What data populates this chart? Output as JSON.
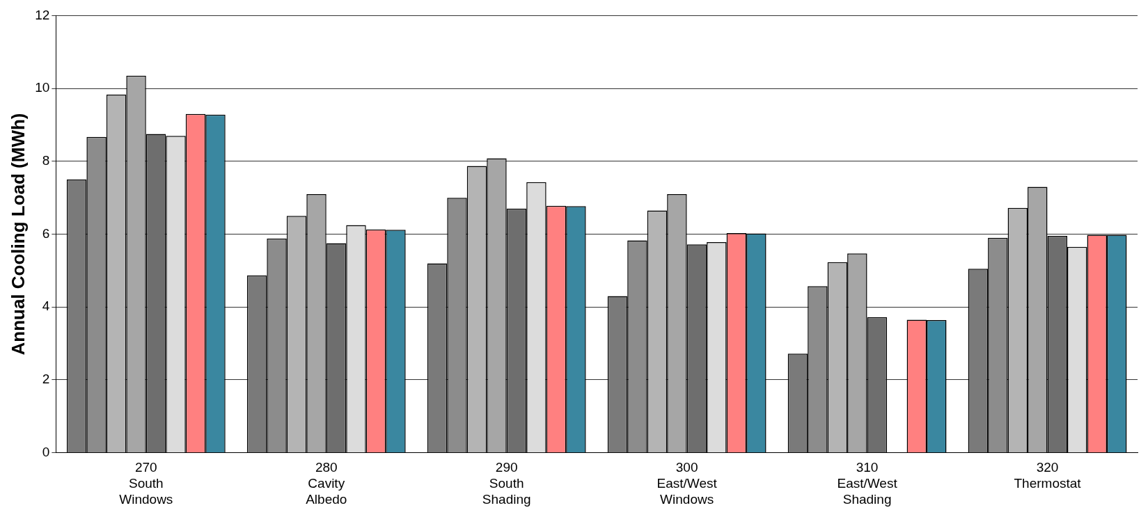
{
  "chart_data": {
    "type": "bar",
    "ylabel": "Annual Cooling Load (MWh)",
    "categories": [
      "270\nSouth\nWindows",
      "280\nCavity\nAlbedo",
      "290\nSouth\nShading",
      "300\nEast/West\nWindows",
      "310\nEast/West\nShading",
      "320\nThermostat"
    ],
    "series": [
      {
        "color": "#7a7a7a",
        "values": [
          7.5,
          4.87,
          5.2,
          4.3,
          2.72,
          5.05
        ]
      },
      {
        "color": "#8c8c8c",
        "values": [
          8.67,
          5.88,
          7.0,
          5.83,
          4.57,
          5.9
        ]
      },
      {
        "color": "#b4b4b4",
        "values": [
          9.83,
          6.5,
          7.87,
          6.65,
          5.23,
          6.72
        ]
      },
      {
        "color": "#a6a6a6",
        "values": [
          10.35,
          7.1,
          8.08,
          7.1,
          5.47,
          7.3
        ]
      },
      {
        "color": "#6e6e6e",
        "values": [
          8.75,
          5.75,
          6.7,
          5.72,
          3.72,
          5.95
        ]
      },
      {
        "color": "#dcdcdc",
        "values": [
          8.7,
          6.25,
          7.43,
          5.78,
          null,
          5.65
        ]
      },
      {
        "color": "#ff8080",
        "values": [
          9.3,
          6.13,
          6.78,
          6.03,
          3.65,
          5.98
        ]
      },
      {
        "color": "#3a87a0",
        "values": [
          9.28,
          6.12,
          6.77,
          6.02,
          3.64,
          5.98
        ]
      }
    ],
    "ylim": [
      0,
      12
    ],
    "yticks": [
      0,
      2,
      4,
      6,
      8,
      10,
      12
    ],
    "grid": "y",
    "legend": false
  }
}
